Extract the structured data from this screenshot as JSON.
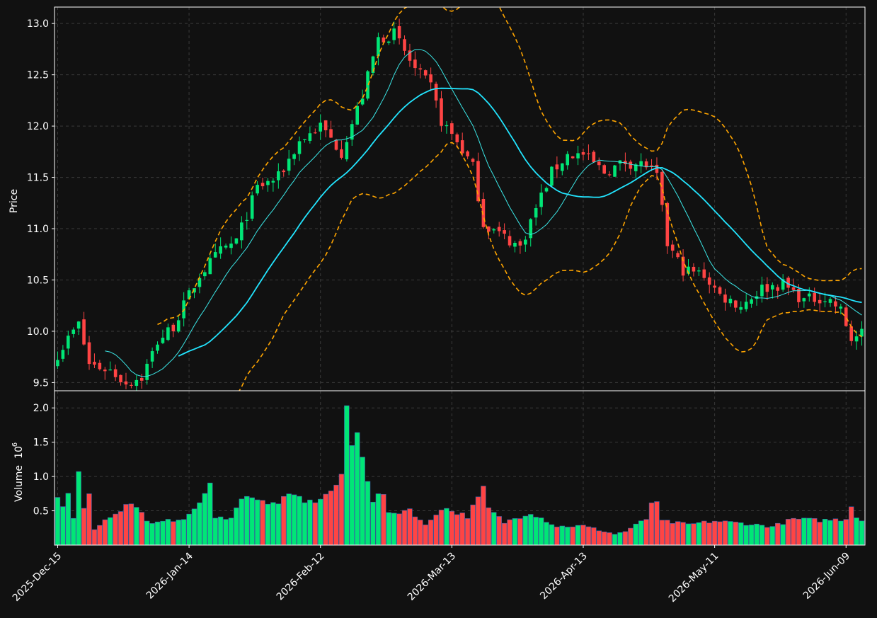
{
  "colors": {
    "background": "#111111",
    "up": "#00e676",
    "down": "#ff4444",
    "sma_fast": "#3be7e7",
    "sma_slow": "#22e5ff",
    "bands": "#ffa500",
    "grid": "#3a3a3a",
    "axis": "#ffffff"
  },
  "chart_data": {
    "type": "candlestick",
    "price_panel": {
      "ylabel": "Price",
      "ylim": [
        9.42,
        13.16
      ],
      "yticks": [
        9.5,
        10.0,
        10.5,
        11.0,
        11.5,
        12.0,
        12.5,
        13.0
      ]
    },
    "volume_panel": {
      "ylabel": "Volume",
      "ylabel_exponent": "10",
      "ylabel_exponent_power": "6",
      "ylim": [
        0,
        2.25
      ],
      "yticks": [
        0.5,
        1.0,
        1.5,
        2.0
      ],
      "ytick_labels": [
        "0.5",
        "1.0",
        "1.5",
        "2.0"
      ]
    },
    "x_range": [
      -0.6,
      153.6
    ],
    "xticks": [
      {
        "index": 0,
        "label": "2025-Dec-15"
      },
      {
        "index": 25,
        "label": "2026-Jan-14"
      },
      {
        "index": 50,
        "label": "2026-Feb-12"
      },
      {
        "index": 75,
        "label": "2026-Mar-13"
      },
      {
        "index": 100,
        "label": "2026-Apr-13"
      },
      {
        "index": 125,
        "label": "2026-May-11"
      },
      {
        "index": 150,
        "label": "2026-Jun-09"
      }
    ],
    "price_anchors": [
      [
        0,
        9.78
      ],
      [
        3,
        10.0
      ],
      [
        4,
        10.07
      ],
      [
        6,
        9.68
      ],
      [
        10,
        9.62
      ],
      [
        13,
        9.5
      ],
      [
        16,
        9.55
      ],
      [
        19,
        9.9
      ],
      [
        22,
        10.05
      ],
      [
        27,
        10.55
      ],
      [
        31,
        10.78
      ],
      [
        34,
        10.88
      ],
      [
        38,
        11.4
      ],
      [
        42,
        11.5
      ],
      [
        46,
        11.85
      ],
      [
        50,
        12.0
      ],
      [
        54,
        11.75
      ],
      [
        58,
        12.3
      ],
      [
        61,
        12.85
      ],
      [
        64,
        12.9
      ],
      [
        68,
        12.55
      ],
      [
        71,
        12.38
      ],
      [
        73,
        12.05
      ],
      [
        76,
        11.85
      ],
      [
        79,
        11.6
      ],
      [
        81,
        11.05
      ],
      [
        84,
        10.95
      ],
      [
        88,
        10.82
      ],
      [
        91,
        11.2
      ],
      [
        94,
        11.55
      ],
      [
        97,
        11.72
      ],
      [
        100,
        11.72
      ],
      [
        104,
        11.55
      ],
      [
        108,
        11.65
      ],
      [
        112,
        11.62
      ],
      [
        114,
        11.5
      ],
      [
        116,
        10.85
      ],
      [
        119,
        10.6
      ],
      [
        123,
        10.55
      ],
      [
        126,
        10.35
      ],
      [
        130,
        10.25
      ],
      [
        134,
        10.42
      ],
      [
        138,
        10.46
      ],
      [
        142,
        10.3
      ],
      [
        145,
        10.33
      ],
      [
        147,
        10.3
      ],
      [
        149,
        10.2
      ],
      [
        151,
        9.92
      ],
      [
        153,
        9.97
      ]
    ],
    "volume_anchors": [
      [
        0,
        0.68
      ],
      [
        1,
        0.57
      ],
      [
        2,
        0.74
      ],
      [
        3,
        0.42
      ],
      [
        4,
        1.11
      ],
      [
        5,
        0.58
      ],
      [
        6,
        0.71
      ],
      [
        7,
        0.24
      ],
      [
        10,
        0.42
      ],
      [
        14,
        0.62
      ],
      [
        18,
        0.3
      ],
      [
        25,
        0.42
      ],
      [
        29,
        0.86
      ],
      [
        30,
        0.38
      ],
      [
        33,
        0.42
      ],
      [
        36,
        0.76
      ],
      [
        40,
        0.58
      ],
      [
        45,
        0.72
      ],
      [
        48,
        0.62
      ],
      [
        51,
        0.72
      ],
      [
        54,
        0.96
      ],
      [
        55,
        2.05
      ],
      [
        56,
        1.44
      ],
      [
        57,
        1.6
      ],
      [
        58,
        1.37
      ],
      [
        59,
        0.98
      ],
      [
        60,
        0.66
      ],
      [
        62,
        0.76
      ],
      [
        63,
        0.44
      ],
      [
        67,
        0.53
      ],
      [
        70,
        0.28
      ],
      [
        73,
        0.55
      ],
      [
        78,
        0.42
      ],
      [
        81,
        0.81
      ],
      [
        82,
        0.53
      ],
      [
        85,
        0.33
      ],
      [
        90,
        0.48
      ],
      [
        95,
        0.27
      ],
      [
        100,
        0.28
      ],
      [
        106,
        0.16
      ],
      [
        108,
        0.2
      ],
      [
        112,
        0.38
      ],
      [
        113,
        0.63
      ],
      [
        114,
        0.59
      ],
      [
        115,
        0.35
      ],
      [
        120,
        0.3
      ],
      [
        125,
        0.35
      ],
      [
        130,
        0.32
      ],
      [
        136,
        0.27
      ],
      [
        140,
        0.38
      ],
      [
        145,
        0.36
      ],
      [
        150,
        0.38
      ],
      [
        151,
        0.6
      ],
      [
        152,
        0.41
      ],
      [
        153,
        0.36
      ]
    ],
    "sma_fast_period": 10,
    "sma_slow_period": 24,
    "band_period": 20,
    "band_width_std": 2,
    "series": [
      {
        "type": "candlestick"
      },
      {
        "type": "line",
        "role": "sma_fast"
      },
      {
        "type": "line",
        "role": "sma_slow"
      },
      {
        "type": "line",
        "role": "upper_band",
        "style": "dashed"
      },
      {
        "type": "line",
        "role": "lower_band",
        "style": "dashed"
      },
      {
        "type": "bar",
        "role": "volume"
      }
    ]
  }
}
